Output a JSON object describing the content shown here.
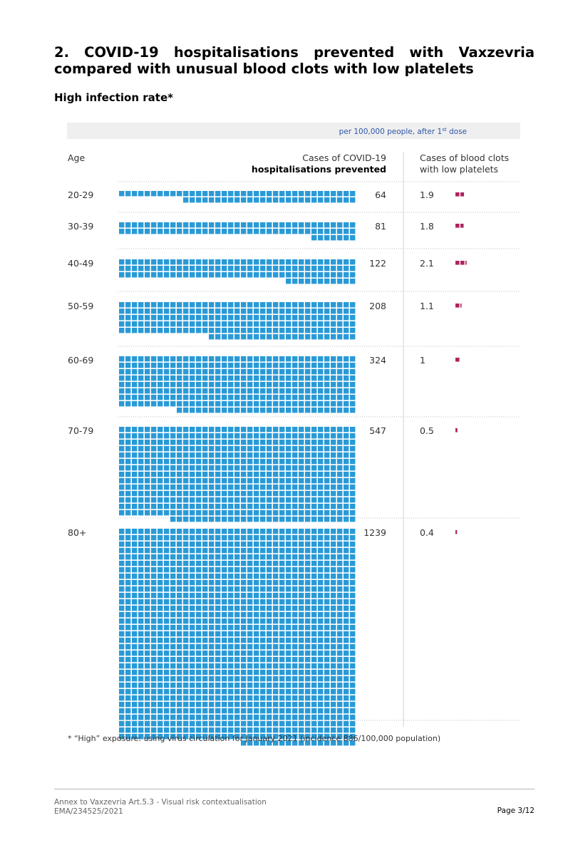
{
  "heading": "2. COVID-19 hospitalisations prevented with Vaxzevria compared with unusual blood clots with low platelets",
  "subheading": "High infection rate*",
  "chart_data": {
    "type": "table",
    "subtitle_main": "per 100,000 people, after 1",
    "subtitle_sup": "st",
    "subtitle_tail": " dose",
    "col_age": "Age",
    "col_hosp_line1": "Cases of COVID-19",
    "col_hosp_line2": "hospitalisations prevented",
    "col_clots_line1": "Cases of blood clots",
    "col_clots_line2": "with low platelets",
    "rows": [
      {
        "age": "20-29",
        "hospitalisations_prevented": 64,
        "hosp_label": "64",
        "blood_clots": 1.9,
        "clots_label": "1.9"
      },
      {
        "age": "30-39",
        "hospitalisations_prevented": 81,
        "hosp_label": "81",
        "blood_clots": 1.8,
        "clots_label": "1.8"
      },
      {
        "age": "40-49",
        "hospitalisations_prevented": 122,
        "hosp_label": "122",
        "blood_clots": 2.1,
        "clots_label": "2.1"
      },
      {
        "age": "50-59",
        "hospitalisations_prevented": 208,
        "hosp_label": "208",
        "blood_clots": 1.1,
        "clots_label": "1.1"
      },
      {
        "age": "60-69",
        "hospitalisations_prevented": 324,
        "hosp_label": "324",
        "blood_clots": 1,
        "clots_label": "1"
      },
      {
        "age": "70-79",
        "hospitalisations_prevented": 547,
        "hosp_label": "547",
        "blood_clots": 0.5,
        "clots_label": "0.5"
      },
      {
        "age": "80+",
        "hospitalisations_prevented": 1239,
        "hosp_label": "1239",
        "blood_clots": 0.4,
        "clots_label": "0.4"
      }
    ],
    "footnote": "* “High” exposure: using virus circulation for January 2021 (incidence 886/100,000 population)",
    "colors": {
      "hospitalisations": "#2a9ad6",
      "blood_clots": "#b0245e",
      "header_band": "#efefef",
      "subtitle": "#2d55a8"
    }
  },
  "footer": {
    "line1": "Annex to Vaxzevria Art.5.3 - Visual risk contextualisation",
    "line2": "EMA/234525/2021",
    "page": "Page 3/12"
  }
}
